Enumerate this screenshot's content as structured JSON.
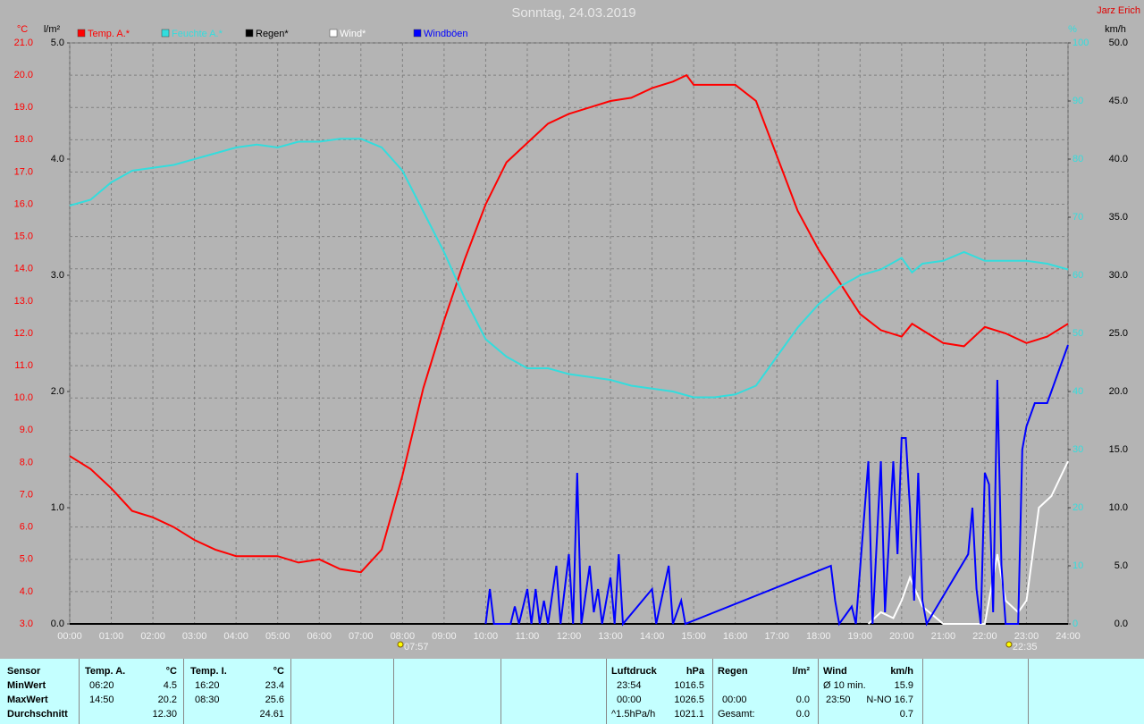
{
  "chart_data": {
    "type": "line",
    "title": "Sonntag, 24.03.2019",
    "author": "Jarz Erich",
    "units": {
      "y": "°C",
      "y3": "l/m²",
      "y2": "%",
      "y4": "km/h"
    },
    "xlim": [
      0,
      24
    ],
    "xticks": [
      {
        "value": 0,
        "label": "00:00"
      },
      {
        "value": 1,
        "label": "01:00"
      },
      {
        "value": 2,
        "label": "02:00"
      },
      {
        "value": 3,
        "label": "03:00"
      },
      {
        "value": 4,
        "label": "04:00"
      },
      {
        "value": 5,
        "label": "05:00"
      },
      {
        "value": 6,
        "label": "06:00"
      },
      {
        "value": 7,
        "label": "07:00"
      },
      {
        "value": 8,
        "label": "08:00"
      },
      {
        "value": 9,
        "label": "09:00"
      },
      {
        "value": 10,
        "label": "10:00"
      },
      {
        "value": 11,
        "label": "11:00"
      },
      {
        "value": 12,
        "label": "12:00"
      },
      {
        "value": 13,
        "label": "13:00"
      },
      {
        "value": 14,
        "label": "14:00"
      },
      {
        "value": 15,
        "label": "15:00"
      },
      {
        "value": 16,
        "label": "16:00"
      },
      {
        "value": 17,
        "label": "17:00"
      },
      {
        "value": 18,
        "label": "18:00"
      },
      {
        "value": 19,
        "label": "19:00"
      },
      {
        "value": 20,
        "label": "20:00"
      },
      {
        "value": 21,
        "label": "21:00"
      },
      {
        "value": 22,
        "label": "22:00"
      },
      {
        "value": 23,
        "label": "23:00"
      },
      {
        "value": 24,
        "label": "24:00"
      }
    ],
    "ylim": [
      3,
      21
    ],
    "yticks": [
      {
        "value": 3,
        "label": "3.0"
      },
      {
        "value": 4,
        "label": "4.0"
      },
      {
        "value": 5,
        "label": "5.0"
      },
      {
        "value": 6,
        "label": "6.0"
      },
      {
        "value": 7,
        "label": "7.0"
      },
      {
        "value": 8,
        "label": "8.0"
      },
      {
        "value": 9,
        "label": "9.0"
      },
      {
        "value": 10,
        "label": "10.0"
      },
      {
        "value": 11,
        "label": "11.0"
      },
      {
        "value": 12,
        "label": "12.0"
      },
      {
        "value": 13,
        "label": "13.0"
      },
      {
        "value": 14,
        "label": "14.0"
      },
      {
        "value": 15,
        "label": "15.0"
      },
      {
        "value": 16,
        "label": "16.0"
      },
      {
        "value": 17,
        "label": "17.0"
      },
      {
        "value": 18,
        "label": "18.0"
      },
      {
        "value": 19,
        "label": "19.0"
      },
      {
        "value": 20,
        "label": "20.0"
      },
      {
        "value": 21,
        "label": "21.0"
      }
    ],
    "y3lim": [
      0,
      5
    ],
    "y3ticks": [
      {
        "value": 0,
        "label": "0.0"
      },
      {
        "value": 1,
        "label": "1.0"
      },
      {
        "value": 2,
        "label": "2.0"
      },
      {
        "value": 3,
        "label": "3.0"
      },
      {
        "value": 4,
        "label": "4.0"
      },
      {
        "value": 5,
        "label": "5.0"
      }
    ],
    "y2lim": [
      0,
      100
    ],
    "y2ticks": [
      0,
      10,
      20,
      30,
      40,
      50,
      60,
      70,
      80,
      90,
      100
    ],
    "y4lim": [
      0,
      50
    ],
    "y4ticks": [
      {
        "value": 0,
        "label": "0.0"
      },
      {
        "value": 5,
        "label": "5.0"
      },
      {
        "value": 10,
        "label": "10.0"
      },
      {
        "value": 15,
        "label": "15.0"
      },
      {
        "value": 20,
        "label": "20.0"
      },
      {
        "value": 25,
        "label": "25.0"
      },
      {
        "value": 30,
        "label": "30.0"
      },
      {
        "value": 35,
        "label": "35.0"
      },
      {
        "value": 40,
        "label": "40.0"
      },
      {
        "value": 45,
        "label": "45.0"
      },
      {
        "value": 50,
        "label": "50.0"
      }
    ],
    "grid": true,
    "series": [
      {
        "name": "Temp. A.*",
        "color": "#ff0000",
        "axis": "y",
        "x": [
          0,
          0.5,
          1,
          1.5,
          2,
          2.5,
          3,
          3.5,
          4,
          4.5,
          5,
          5.5,
          6,
          6.5,
          7,
          7.5,
          8,
          8.5,
          9,
          9.5,
          10,
          10.5,
          11,
          11.5,
          12,
          12.5,
          13,
          13.5,
          14,
          14.5,
          14.83,
          15,
          15.5,
          16,
          16.5,
          17,
          17.5,
          18,
          18.5,
          19,
          19.5,
          20,
          20.25,
          20.5,
          21,
          21.5,
          22,
          22.5,
          23,
          23.5,
          24
        ],
        "values": [
          8.2,
          7.8,
          7.2,
          6.5,
          6.3,
          6.0,
          5.6,
          5.3,
          5.1,
          5.1,
          5.1,
          4.9,
          5.0,
          4.7,
          4.6,
          5.3,
          7.6,
          10.3,
          12.4,
          14.3,
          16.0,
          17.3,
          17.9,
          18.5,
          18.8,
          19.0,
          19.2,
          19.3,
          19.6,
          19.8,
          20.0,
          19.7,
          19.7,
          19.7,
          19.2,
          17.5,
          15.8,
          14.6,
          13.6,
          12.6,
          12.1,
          11.9,
          12.3,
          12.1,
          11.7,
          11.6,
          12.2,
          12.0,
          11.7,
          11.9,
          12.3
        ]
      },
      {
        "name": "Feuchte A.*",
        "color": "#33dddd",
        "axis": "y2",
        "x": [
          0,
          0.5,
          1,
          1.5,
          2,
          2.5,
          3,
          3.5,
          4,
          4.5,
          5,
          5.5,
          6,
          6.5,
          7,
          7.5,
          8,
          8.5,
          9,
          9.5,
          10,
          10.5,
          11,
          11.5,
          12,
          12.5,
          13,
          13.5,
          14,
          14.5,
          15,
          15.5,
          16,
          16.5,
          17,
          17.5,
          18,
          18.5,
          19,
          19.5,
          20,
          20.25,
          20.5,
          21,
          21.5,
          22,
          22.5,
          23,
          23.5,
          24
        ],
        "values": [
          72,
          73,
          76,
          78,
          78.5,
          79,
          80,
          81,
          82,
          82.5,
          82,
          83,
          83,
          83.5,
          83.5,
          82,
          78,
          71,
          64,
          56,
          49,
          46,
          44,
          44,
          43,
          42.5,
          42,
          41,
          40.5,
          40,
          39,
          39,
          39.5,
          41,
          46,
          51,
          55,
          58,
          60,
          61,
          63,
          60.5,
          62,
          62.5,
          64,
          62.5,
          62.5,
          62.5,
          62,
          61
        ]
      },
      {
        "name": "Regen*",
        "color": "#000000",
        "axis": "y3",
        "x": [
          0,
          24
        ],
        "values": [
          0,
          0
        ]
      },
      {
        "name": "Wind*",
        "color": "#ffffff",
        "axis": "y4",
        "x": [
          19.2,
          19.5,
          19.8,
          20,
          20.2,
          20.5,
          21,
          21.5,
          22,
          22.3,
          22.5,
          22.8,
          23,
          23.3,
          23.6,
          23.8,
          24
        ],
        "values": [
          0,
          1,
          0.5,
          2,
          4,
          1.5,
          0,
          0,
          0,
          6,
          2,
          1,
          2,
          10,
          11,
          12.5,
          14
        ]
      },
      {
        "name": "Windböen",
        "color": "#0000ff",
        "axis": "y4",
        "x": [
          10,
          10.1,
          10.2,
          10.6,
          10.7,
          10.8,
          11,
          11.1,
          11.2,
          11.3,
          11.4,
          11.5,
          11.7,
          11.8,
          12,
          12.1,
          12.2,
          12.3,
          12.5,
          12.6,
          12.7,
          12.8,
          13,
          13.1,
          13.2,
          13.3,
          14,
          14.1,
          14.4,
          14.5,
          14.7,
          14.8,
          18.3,
          18.4,
          18.5,
          18.8,
          18.9,
          19.2,
          19.3,
          19.5,
          19.6,
          19.8,
          19.9,
          20,
          20.1,
          20.2,
          20.3,
          20.4,
          20.5,
          20.6,
          21.6,
          21.7,
          21.8,
          21.9,
          22,
          22.1,
          22.2,
          22.3,
          22.4,
          22.5,
          22.8,
          22.9,
          23,
          23.2,
          23.5,
          23.7,
          24
        ],
        "values": [
          0,
          3,
          0,
          0,
          1.5,
          0,
          3,
          0,
          3,
          0,
          2,
          0,
          5,
          0,
          6,
          0,
          13,
          0,
          5,
          1,
          3,
          0,
          4,
          0,
          6,
          0,
          3,
          0,
          5,
          0,
          2,
          0,
          5,
          2,
          0,
          1.5,
          0,
          14,
          0,
          14,
          1,
          14,
          6,
          16,
          16,
          10,
          2,
          13,
          2,
          0,
          6,
          10,
          3,
          0,
          13,
          12,
          1,
          21,
          5,
          0,
          0,
          15,
          17,
          19,
          19,
          21,
          24
        ]
      }
    ],
    "annotations": [
      {
        "x": 7.95,
        "label": "07:57"
      },
      {
        "x": 22.58,
        "label": "22:35"
      }
    ]
  },
  "table": {
    "row_labels": [
      "Sensor",
      "MinWert",
      "MaxWert",
      "Durchschnitt"
    ],
    "groups": [
      {
        "header": "Temp. A.",
        "unit": "°C",
        "rows": [
          {
            "label": "06:20",
            "value": "4.5"
          },
          {
            "label": "14:50",
            "value": "20.2"
          },
          {
            "value": "12.30"
          }
        ]
      },
      {
        "header": "Temp. I.",
        "unit": "°C",
        "rows": [
          {
            "label": "16:20",
            "value": "23.4"
          },
          {
            "label": "08:30",
            "value": "25.6"
          },
          {
            "value": "24.61"
          }
        ]
      },
      {
        "header": "Luftdruck",
        "unit": "hPa",
        "rows": [
          {
            "label": "23:54",
            "value": "1016.5"
          },
          {
            "label": "00:00",
            "value": "1026.5"
          },
          {
            "label": "^1.5hPa/h",
            "value": "1021.1"
          }
        ]
      },
      {
        "header": "Regen",
        "unit": "l/m²",
        "rows": [
          null,
          {
            "label": "00:00",
            "value": "0.0"
          },
          {
            "label": "Gesamt:",
            "value": "0.0"
          }
        ]
      },
      {
        "header": "Wind",
        "unit": "km/h",
        "rows": [
          {
            "label": "Ø 10 min.",
            "value": "15.9"
          },
          {
            "label": "23:50",
            "value": "N-NO 16.7"
          },
          {
            "value": "0.7"
          }
        ]
      }
    ]
  }
}
